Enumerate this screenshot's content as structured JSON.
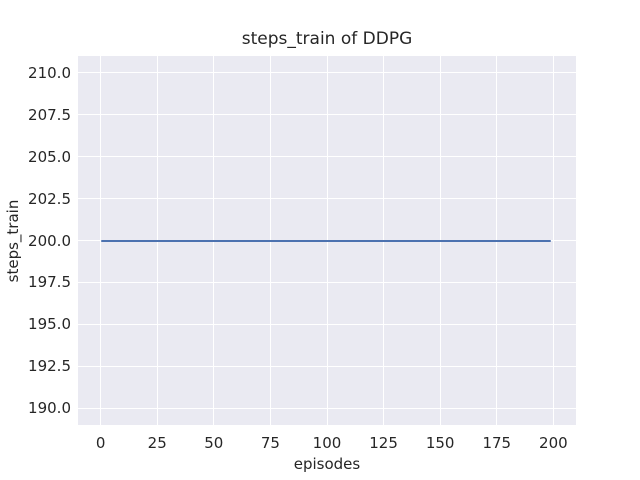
{
  "chart_data": {
    "type": "line",
    "title": "steps_train of DDPG",
    "xlabel": "episodes",
    "ylabel": "steps_train",
    "xlim": [
      -10,
      210
    ],
    "ylim": [
      189,
      211
    ],
    "x_ticks": [
      0,
      25,
      50,
      75,
      100,
      125,
      150,
      175,
      200
    ],
    "x_tick_labels": [
      "0",
      "25",
      "50",
      "75",
      "100",
      "125",
      "150",
      "175",
      "200"
    ],
    "y_ticks": [
      190.0,
      192.5,
      195.0,
      197.5,
      200.0,
      202.5,
      205.0,
      207.5,
      210.0
    ],
    "y_tick_labels": [
      "190.0",
      "192.5",
      "195.0",
      "197.5",
      "200.0",
      "202.5",
      "205.0",
      "207.5",
      "210.0"
    ],
    "grid": true,
    "legend": "none",
    "plot_background_color": "#eaeaf2",
    "grid_color": "#ffffff",
    "text_color": "#262626",
    "series": [
      {
        "name": "steps_train",
        "color": "#4c72b0",
        "description": "constant value 200 for all episodes 0 through 199",
        "constant_value": 200,
        "points": [
          [
            0,
            200
          ],
          [
            199,
            200
          ]
        ]
      }
    ]
  }
}
